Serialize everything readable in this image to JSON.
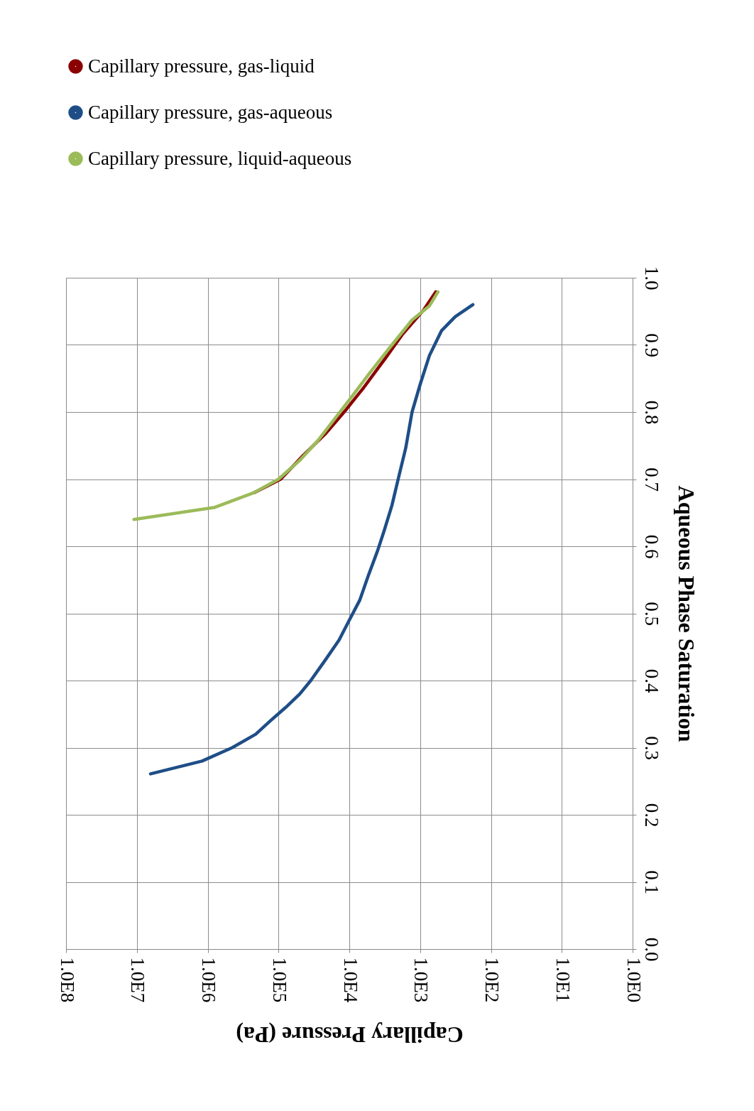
{
  "chart_data": {
    "type": "line",
    "xlabel": "Capillary Pressure (Pa)",
    "ylabel": "Aqueous Phase Saturation",
    "xlim": [
      100000000,
      1
    ],
    "xticks": [
      {
        "value": 100000000,
        "label": "1.0E8"
      },
      {
        "value": 10000000,
        "label": "1.0E7"
      },
      {
        "value": 1000000,
        "label": "1.0E6"
      },
      {
        "value": 100000,
        "label": "1.0E5"
      },
      {
        "value": 10000,
        "label": "1.0E4"
      },
      {
        "value": 1000,
        "label": "1.0E3"
      },
      {
        "value": 100,
        "label": "1.0E2"
      },
      {
        "value": 10,
        "label": "1.0E1"
      },
      {
        "value": 1,
        "label": "1.0E0"
      }
    ],
    "ylim": [
      0,
      1
    ],
    "yticks": [
      {
        "value": 0,
        "label": "0.0"
      },
      0.1,
      0.2,
      0.3,
      0.4,
      0.5,
      0.6,
      0.7,
      0.8,
      0.9,
      {
        "value": 1,
        "label": "1.0"
      }
    ],
    "log": "x",
    "grid": true,
    "legend": "top",
    "line_style": "solid",
    "series": [
      {
        "name": "Capillary pressure, gas-liquid",
        "color": "#8b0000",
        "x": [
          220000,
          93000,
          45000,
          22000,
          11000,
          6300,
          3200,
          1800,
          890,
          600
        ],
        "values": [
          0.68,
          0.7,
          0.735,
          0.767,
          0.804,
          0.836,
          0.878,
          0.915,
          0.952,
          0.979
        ]
      },
      {
        "name": "Capillary pressure, gas-aqueous",
        "color": "#1f4e87",
        "x": [
          6400000,
          1200000,
          450000,
          210000,
          130000,
          79000,
          50000,
          35000,
          22000,
          14000,
          10000,
          7100,
          5400,
          4000,
          3200,
          2500,
          2000,
          1600,
          1300,
          1000,
          740,
          500,
          320,
          180
        ],
        "values": [
          0.261,
          0.28,
          0.3,
          0.32,
          0.34,
          0.36,
          0.38,
          0.4,
          0.43,
          0.46,
          0.49,
          0.52,
          0.556,
          0.593,
          0.624,
          0.661,
          0.704,
          0.746,
          0.8,
          0.841,
          0.884,
          0.921,
          0.942,
          0.96
        ]
      },
      {
        "name": "Capillary pressure, liquid-aqueous",
        "color": "#9bbb59",
        "x": [
          11000000,
          790000,
          220000,
          100000,
          50000,
          28000,
          16000,
          8900,
          5000,
          2500,
          1300,
          740,
          560
        ],
        "values": [
          0.64,
          0.658,
          0.68,
          0.7,
          0.728,
          0.757,
          0.79,
          0.825,
          0.86,
          0.9,
          0.937,
          0.958,
          0.979
        ]
      }
    ]
  }
}
